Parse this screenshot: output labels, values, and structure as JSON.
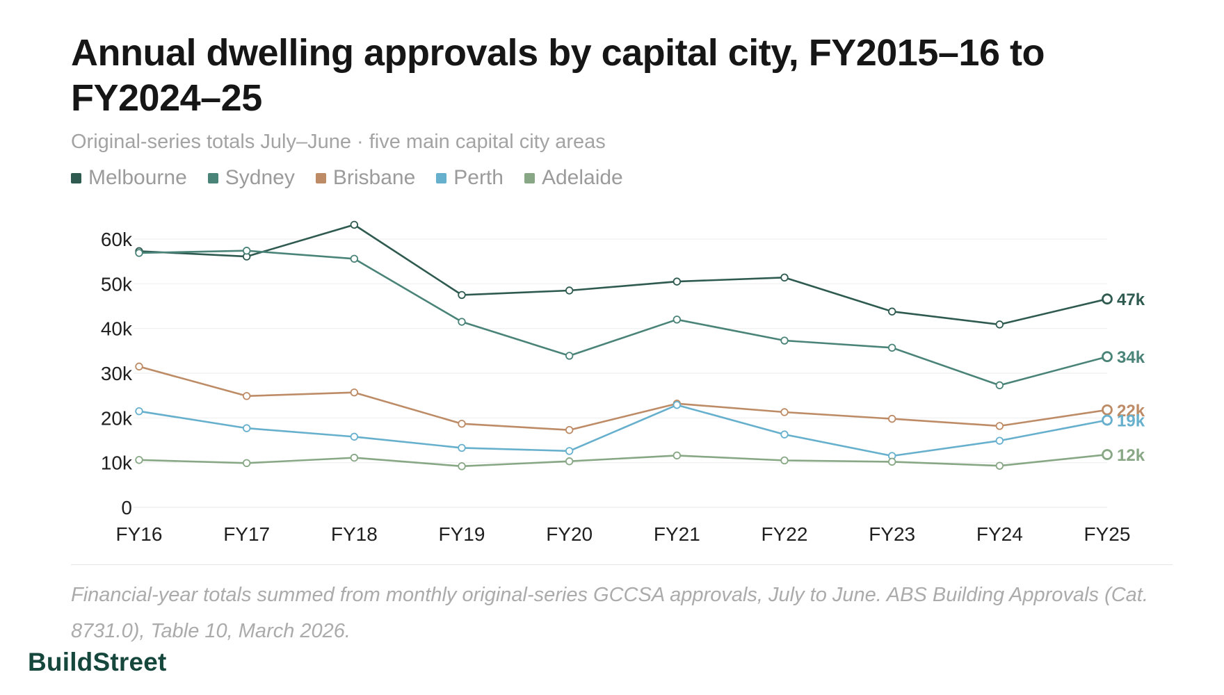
{
  "header": {
    "title": "Annual dwelling approvals by capital city, FY2015–16 to FY2024–25",
    "subtitle": "Original-series totals July–June · five main capital city areas"
  },
  "footer": {
    "note": "Financial-year totals summed from monthly original-series GCCSA approvals, July to June. ABS Building Approvals (Cat. 8731.0), Table 10, March 2026.",
    "brand": "BuildStreet"
  },
  "chart_data": {
    "type": "line",
    "title": "Annual dwelling approvals by capital city, FY2015–16 to FY2024–25",
    "subtitle": "Original-series totals July–June · five main capital city areas",
    "xlabel": "",
    "ylabel": "",
    "categories": [
      "FY16",
      "FY17",
      "FY18",
      "FY19",
      "FY20",
      "FY21",
      "FY22",
      "FY23",
      "FY24",
      "FY25"
    ],
    "ylim": [
      0,
      60000
    ],
    "yticks": [
      0,
      10000,
      20000,
      30000,
      40000,
      50000,
      60000
    ],
    "ytick_labels": [
      "0",
      "10k",
      "20k",
      "30k",
      "40k",
      "50k",
      "60k"
    ],
    "grid": true,
    "legend_position": "top-left",
    "series": [
      {
        "name": "Melbourne",
        "color": "#2e5a50",
        "end_label": "47k",
        "values": [
          57300,
          56100,
          63200,
          47500,
          48500,
          50500,
          51400,
          43800,
          40900,
          46600
        ]
      },
      {
        "name": "Sydney",
        "color": "#4a8378",
        "end_label": "34k",
        "values": [
          56900,
          57400,
          55600,
          41500,
          33900,
          42000,
          37300,
          35700,
          27300,
          33700
        ]
      },
      {
        "name": "Brisbane",
        "color": "#bd8c66",
        "end_label": "22k",
        "values": [
          31500,
          24900,
          25700,
          18700,
          17300,
          23200,
          21300,
          19800,
          18200,
          21800
        ]
      },
      {
        "name": "Perth",
        "color": "#67b0cd",
        "end_label": "19k",
        "values": [
          21500,
          17700,
          15800,
          13300,
          12600,
          22900,
          16300,
          11500,
          14900,
          19500
        ]
      },
      {
        "name": "Adelaide",
        "color": "#87a785",
        "end_label": "12k",
        "values": [
          10600,
          9900,
          11100,
          9200,
          10300,
          11600,
          10500,
          10200,
          9300,
          11800
        ]
      }
    ]
  }
}
